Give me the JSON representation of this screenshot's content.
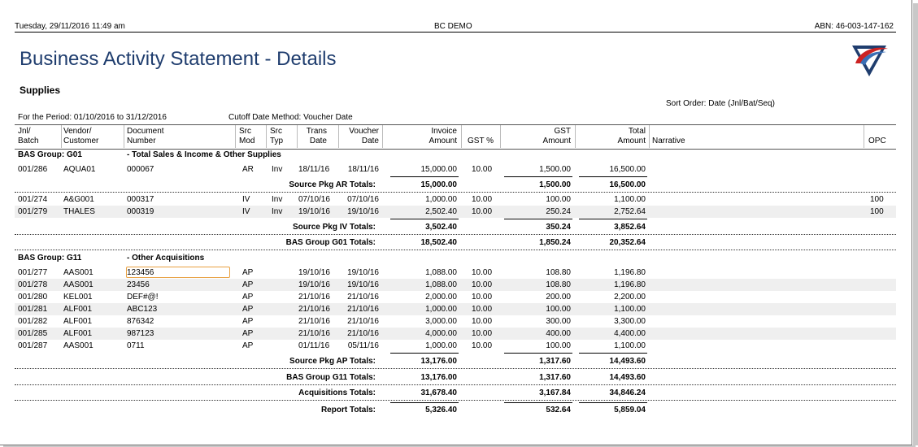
{
  "header": {
    "date_time": "Tuesday, 29/11/2016 11:49 am",
    "company": "BC DEMO",
    "abn": "ABN: 46-003-147-162"
  },
  "title": "Business Activity Statement - Details",
  "subtitle": "Supplies",
  "sort_order": "Sort Order: Date (Jnl/Bat/Seq)",
  "period": "For the Period: 01/10/2016 to 31/12/2016",
  "cutoff": "Cutoff Date Method: Voucher Date",
  "columns": {
    "jnl": [
      "Jnl/",
      "Batch"
    ],
    "vendor": [
      "Vendor/",
      "Customer"
    ],
    "doc": [
      "Document",
      "Number"
    ],
    "src_mod": [
      "Src",
      "Mod"
    ],
    "src_typ": [
      "Src",
      "Typ"
    ],
    "trans": [
      "Trans",
      "Date"
    ],
    "voucher": [
      "Voucher",
      "Date"
    ],
    "invoice": [
      "Invoice",
      "Amount"
    ],
    "gst_pct": "GST %",
    "gst_amt": [
      "GST",
      "Amount"
    ],
    "total": [
      "Total",
      "Amount"
    ],
    "narrative": "Narrative",
    "opc": "OPC"
  },
  "groups": [
    {
      "label": "BAS Group:  G01",
      "desc": "-  Total Sales & Income & Other Supplies",
      "rows": [
        {
          "jnl": "001/286",
          "vendor": "AQUA01",
          "doc": "000067",
          "mod": "AR",
          "typ": "Inv",
          "trans": "18/11/16",
          "voucher": "18/11/16",
          "inv": "15,000.00",
          "pct": "10.00",
          "gst": "1,500.00",
          "total": "16,500.00",
          "opc": ""
        }
      ],
      "pkg_ar": {
        "label": "Source Pkg AR Totals:",
        "inv": "15,000.00",
        "gst": "1,500.00",
        "total": "16,500.00"
      },
      "rows2": [
        {
          "jnl": "001/274",
          "vendor": "A&G001",
          "doc": "000317",
          "mod": "IV",
          "typ": "Inv",
          "trans": "07/10/16",
          "voucher": "07/10/16",
          "inv": "1,000.00",
          "pct": "10.00",
          "gst": "100.00",
          "total": "1,100.00",
          "opc": "100"
        },
        {
          "jnl": "001/279",
          "vendor": "THALES",
          "doc": "000319",
          "mod": "IV",
          "typ": "Inv",
          "trans": "19/10/16",
          "voucher": "19/10/16",
          "inv": "2,502.40",
          "pct": "10.00",
          "gst": "250.24",
          "total": "2,752.64",
          "opc": "100"
        }
      ],
      "pkg_iv": {
        "label": "Source Pkg IV Totals:",
        "inv": "3,502.40",
        "gst": "350.24",
        "total": "3,852.64"
      },
      "group_total": {
        "label": "BAS Group G01 Totals:",
        "inv": "18,502.40",
        "gst": "1,850.24",
        "total": "20,352.64"
      }
    },
    {
      "label": "BAS Group:  G11",
      "desc": "-  Other Acquisitions",
      "rows": [
        {
          "jnl": "001/277",
          "vendor": "AAS001",
          "doc": "123456",
          "mod": "AP",
          "typ": "",
          "trans": "19/10/16",
          "voucher": "19/10/16",
          "inv": "1,088.00",
          "pct": "10.00",
          "gst": "108.80",
          "total": "1,196.80",
          "opc": ""
        },
        {
          "jnl": "001/278",
          "vendor": "AAS001",
          "doc": "23456",
          "mod": "AP",
          "typ": "",
          "trans": "19/10/16",
          "voucher": "19/10/16",
          "inv": "1,088.00",
          "pct": "10.00",
          "gst": "108.80",
          "total": "1,196.80",
          "opc": ""
        },
        {
          "jnl": "001/280",
          "vendor": "KEL001",
          "doc": "DEF#@!",
          "mod": "AP",
          "typ": "",
          "trans": "21/10/16",
          "voucher": "21/10/16",
          "inv": "2,000.00",
          "pct": "10.00",
          "gst": "200.00",
          "total": "2,200.00",
          "opc": ""
        },
        {
          "jnl": "001/281",
          "vendor": "ALF001",
          "doc": "ABC123",
          "mod": "AP",
          "typ": "",
          "trans": "21/10/16",
          "voucher": "21/10/16",
          "inv": "1,000.00",
          "pct": "10.00",
          "gst": "100.00",
          "total": "1,100.00",
          "opc": ""
        },
        {
          "jnl": "001/282",
          "vendor": "ALF001",
          "doc": "876342",
          "mod": "AP",
          "typ": "",
          "trans": "21/10/16",
          "voucher": "21/10/16",
          "inv": "3,000.00",
          "pct": "10.00",
          "gst": "300.00",
          "total": "3,300.00",
          "opc": ""
        },
        {
          "jnl": "001/285",
          "vendor": "ALF001",
          "doc": "987123",
          "mod": "AP",
          "typ": "",
          "trans": "21/10/16",
          "voucher": "21/10/16",
          "inv": "4,000.00",
          "pct": "10.00",
          "gst": "400.00",
          "total": "4,400.00",
          "opc": ""
        },
        {
          "jnl": "001/287",
          "vendor": "AAS001",
          "doc": "0711",
          "mod": "AP",
          "typ": "",
          "trans": "01/11/16",
          "voucher": "05/11/16",
          "inv": "1,000.00",
          "pct": "10.00",
          "gst": "100.00",
          "total": "1,100.00",
          "opc": ""
        }
      ],
      "pkg_ap": {
        "label": "Source Pkg AP Totals:",
        "inv": "13,176.00",
        "gst": "1,317.60",
        "total": "14,493.60"
      },
      "group_total": {
        "label": "BAS Group G11 Totals:",
        "inv": "13,176.00",
        "gst": "1,317.60",
        "total": "14,493.60"
      }
    }
  ],
  "acquisitions_total": {
    "label": "Acquisitions Totals:",
    "inv": "31,678.40",
    "gst": "3,167.84",
    "total": "34,846.24"
  },
  "report_total": {
    "label": "Report Totals:",
    "inv": "5,326.40",
    "gst": "532.64",
    "total": "5,859.04"
  }
}
